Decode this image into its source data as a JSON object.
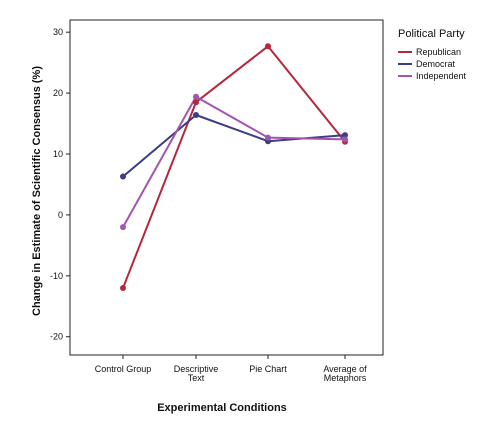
{
  "chart_data": {
    "type": "line",
    "xlabel": "Experimental Conditions",
    "ylabel": "Change in Estimate of Scientific Consensus (%)",
    "categories": [
      [
        "Control Group"
      ],
      [
        "Descriptive",
        "Text"
      ],
      [
        "Pie Chart"
      ],
      [
        "Average of",
        "Metaphors"
      ]
    ],
    "ylim": [
      -23,
      32
    ],
    "yticks": [
      "30",
      "20",
      "10",
      "0",
      "-10",
      "-20"
    ],
    "ytick_values": [
      30,
      20,
      10,
      0,
      -10,
      -20
    ],
    "legend": {
      "title": "Political Party",
      "position": "top-right"
    },
    "grid": false,
    "series": [
      {
        "name": "Republican",
        "color": "#b5273a",
        "values": [
          -12,
          18.5,
          27.7,
          12.0
        ]
      },
      {
        "name": "Democrat",
        "color": "#3d3d87",
        "values": [
          6.3,
          16.4,
          12.1,
          13.1
        ]
      },
      {
        "name": "Independent",
        "color": "#a155b0",
        "values": [
          -2.0,
          19.4,
          12.7,
          12.4
        ]
      }
    ]
  }
}
